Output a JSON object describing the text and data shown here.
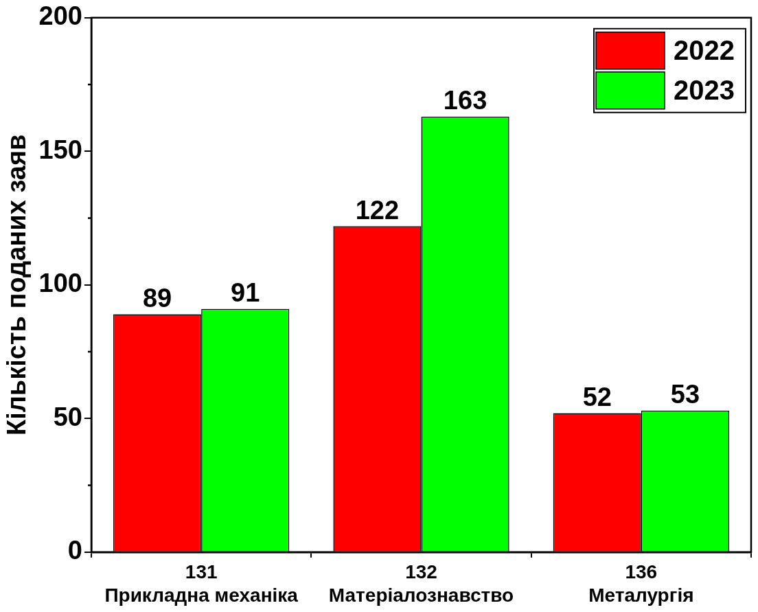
{
  "chart_data": {
    "type": "bar",
    "ylabel": "Кількість поданих заяв",
    "categories": [
      "131\nПрикладна механіка",
      "132\nМатеріалознавство",
      "136\nМеталургія"
    ],
    "series": [
      {
        "name": "2022",
        "color": "#ff0000",
        "values": [
          89,
          122,
          52
        ]
      },
      {
        "name": "2023",
        "color": "#00ff00",
        "values": [
          91,
          163,
          53
        ]
      }
    ],
    "ylim": [
      0,
      200
    ],
    "yticks": [
      0,
      50,
      100,
      150,
      200
    ],
    "grid": false,
    "legend": "top right",
    "data_labels": true
  }
}
